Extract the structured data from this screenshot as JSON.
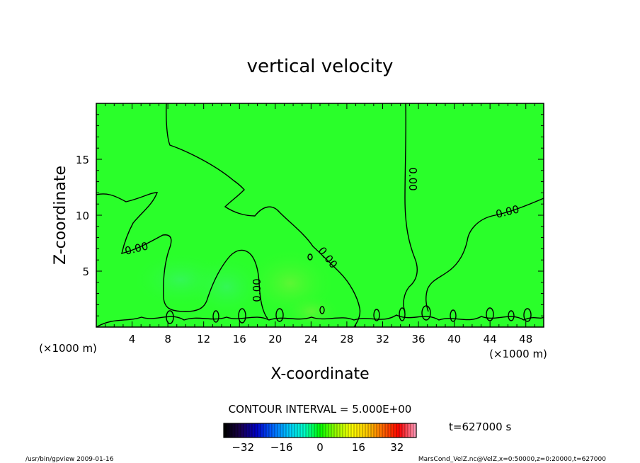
{
  "chart_data": {
    "type": "heatmap",
    "title": "vertical velocity",
    "xlabel": "X-coordinate",
    "ylabel": "Z-coordinate",
    "x_unit_left": "(×1000 m)",
    "x_unit_right": "(×1000 m)",
    "y_unit": "(×1000 m)",
    "xlim": [
      0,
      50
    ],
    "ylim": [
      0,
      20
    ],
    "x_ticks": [
      4,
      8,
      12,
      16,
      20,
      24,
      28,
      32,
      36,
      40,
      44,
      48
    ],
    "y_ticks": [
      5,
      10,
      15
    ],
    "contour_interval_text": "CONTOUR INTERVAL = 5.000E+00",
    "contour_labels": [
      "0.00",
      "0.00",
      "0.00",
      "0.00",
      "0.00"
    ],
    "colorbar": {
      "ticks": [
        -32,
        -16,
        0,
        16,
        32
      ],
      "range": [
        -40,
        40
      ],
      "colors": [
        "#000000",
        "#1a0050",
        "#0000c8",
        "#0064ff",
        "#00c8ff",
        "#00ffc8",
        "#00ff00",
        "#96ff00",
        "#ffff00",
        "#ffc800",
        "#ff6400",
        "#ff0000",
        "#ff96b4"
      ]
    },
    "background_color": "#2aff2a",
    "grid": false,
    "time_label": "t=627000 s",
    "footer_left": "/usr/bin/gpview  2009-01-16",
    "footer_right": "MarsCond_VelZ.nc@VelZ,x=0:50000,z=0:20000,t=627000"
  }
}
